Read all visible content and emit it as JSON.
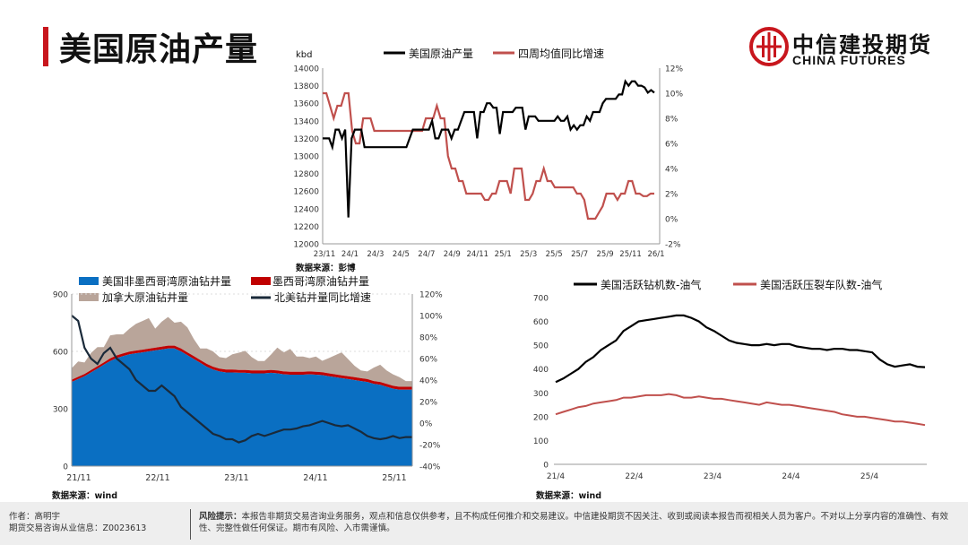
{
  "page": {
    "title": "美国原油产量",
    "logo_cn": "中信建投期货",
    "logo_en": "CHINA FUTURES",
    "brand_color": "#c8161d"
  },
  "footer": {
    "author": "作者：高明宇",
    "license": "期货交易咨询从业信息：Z0023613",
    "risk_label": "风险提示：",
    "risk_text": "本报告非期货交易咨询业务服务，观点和信息仅供参考，且不构成任何推介和交易建议。中信建投期货不因关注、收到或阅读本报告而视相关人员为客户。不对以上分享内容的准确性、有效性、完整性做任何保证。期市有风险、入市需谨慎。"
  },
  "chart_data": [
    {
      "type": "line",
      "title": "美国原油产量",
      "ylabel": "kbd",
      "source": "数据来源：彭博",
      "ylim": [
        12000,
        14000
      ],
      "y2lim": [
        -2,
        12
      ],
      "yticks": [
        "14000",
        "13800",
        "13600",
        "13400",
        "13200",
        "13000",
        "12800",
        "12600",
        "12400",
        "12200",
        "12000"
      ],
      "y2ticks": [
        "12%",
        "10%",
        "8%",
        "6%",
        "4%",
        "2%",
        "0%",
        "-2%"
      ],
      "xticks": [
        "23/11",
        "24/1",
        "24/3",
        "24/5",
        "24/7",
        "24/9",
        "24/11",
        "25/1",
        "25/3",
        "25/5",
        "25/7",
        "25/9",
        "25/11",
        "26/1"
      ],
      "series": [
        {
          "name": "美国原油产量",
          "axis": "left",
          "color": "#000000",
          "values": [
            13200,
            13200,
            13200,
            13100,
            13300,
            13300,
            13200,
            13300,
            12300,
            13200,
            13300,
            13300,
            13300,
            13100,
            13100,
            13100,
            13100,
            13100,
            13100,
            13100,
            13100,
            13100,
            13100,
            13100,
            13100,
            13100,
            13100,
            13200,
            13300,
            13300,
            13300,
            13300,
            13300,
            13300,
            13400,
            13200,
            13200,
            13300,
            13300,
            13300,
            13200,
            13300,
            13300,
            13400,
            13500,
            13500,
            13500,
            13500,
            13200,
            13500,
            13500,
            13600,
            13600,
            13550,
            13550,
            13250,
            13500,
            13500,
            13500,
            13500,
            13550,
            13550,
            13550,
            13300,
            13450,
            13450,
            13450,
            13400,
            13400,
            13400,
            13400,
            13400,
            13400,
            13450,
            13400,
            13400,
            13450,
            13300,
            13350,
            13300,
            13350,
            13350,
            13450,
            13400,
            13500,
            13500,
            13500,
            13600,
            13650,
            13650,
            13650,
            13650,
            13700,
            13700,
            13850,
            13800,
            13850,
            13850,
            13800,
            13800,
            13780,
            13720,
            13750,
            13720
          ]
        },
        {
          "name": "四周均值同比增速",
          "axis": "right",
          "color": "#c0504d",
          "values": [
            10,
            10,
            9,
            8,
            9,
            9,
            10,
            10,
            7,
            6,
            6,
            8,
            8,
            8,
            7,
            7,
            7,
            7,
            7,
            7,
            7,
            7,
            7,
            7,
            7,
            7,
            7,
            7,
            8,
            8,
            8,
            9,
            8,
            8,
            5,
            4,
            4,
            3,
            3,
            2,
            2,
            2,
            2,
            2,
            1.5,
            1.5,
            2,
            2,
            3,
            3,
            3,
            2,
            4,
            4,
            4,
            1.5,
            1.5,
            2,
            3,
            3,
            4,
            3,
            3,
            2.5,
            2.5,
            2.5,
            2.5,
            2.5,
            2.5,
            2,
            2,
            1.5,
            0,
            0,
            0,
            0.5,
            1,
            2,
            2,
            2,
            1.5,
            2,
            2,
            3,
            3,
            2,
            2,
            1.8,
            1.8,
            2,
            2
          ]
        }
      ]
    },
    {
      "type": "area",
      "source": "数据来源：wind",
      "ylim": [
        0,
        900
      ],
      "y2lim": [
        -40,
        120
      ],
      "yticks": [
        "900",
        "600",
        "300",
        "0"
      ],
      "y2ticks": [
        "120%",
        "100%",
        "80%",
        "60%",
        "40%",
        "20%",
        "0%",
        "-20%",
        "-40%"
      ],
      "xticks": [
        "21/11",
        "22/11",
        "23/11",
        "24/11",
        "25/11"
      ],
      "series": [
        {
          "name": "美国非墨西哥湾原油钻井量",
          "color": "#0a6fc2",
          "stack": true,
          "values": [
            440,
            455,
            470,
            490,
            510,
            530,
            550,
            565,
            575,
            585,
            590,
            595,
            600,
            605,
            610,
            615,
            615,
            600,
            580,
            560,
            540,
            520,
            505,
            495,
            490,
            490,
            488,
            488,
            485,
            485,
            485,
            488,
            485,
            480,
            478,
            478,
            478,
            480,
            478,
            476,
            470,
            465,
            460,
            455,
            450,
            445,
            440,
            430,
            425,
            415,
            405,
            400,
            400,
            400
          ]
        },
        {
          "name": "墨西哥湾原油钻井量",
          "color": "#c00000",
          "stack": true,
          "values": [
            12,
            12,
            12,
            12,
            12,
            12,
            14,
            14,
            14,
            14,
            14,
            14,
            14,
            14,
            15,
            15,
            15,
            15,
            15,
            15,
            15,
            15,
            15,
            15,
            15,
            15,
            15,
            15,
            15,
            15,
            15,
            15,
            15,
            15,
            15,
            15,
            15,
            15,
            15,
            15,
            15,
            15,
            15,
            15,
            15,
            15,
            15,
            15,
            15,
            15,
            15,
            15,
            15,
            15
          ]
        },
        {
          "name": "加拿大原油钻井量",
          "color": "#b9a59a",
          "stack": true,
          "values": [
            60,
            80,
            60,
            90,
            100,
            80,
            120,
            110,
            100,
            120,
            140,
            150,
            160,
            100,
            130,
            150,
            120,
            140,
            130,
            90,
            60,
            80,
            80,
            60,
            60,
            80,
            90,
            100,
            70,
            50,
            50,
            80,
            120,
            100,
            120,
            80,
            80,
            70,
            80,
            60,
            80,
            100,
            120,
            90,
            60,
            40,
            40,
            70,
            90,
            70,
            60,
            50,
            30,
            30
          ]
        },
        {
          "name": "北美钻井量同比增速",
          "axis": "right",
          "color": "#1a2a3a",
          "values": [
            100,
            95,
            70,
            60,
            55,
            65,
            70,
            60,
            55,
            50,
            40,
            35,
            30,
            30,
            35,
            30,
            25,
            15,
            10,
            5,
            0,
            -5,
            -10,
            -12,
            -15,
            -15,
            -18,
            -16,
            -12,
            -10,
            -12,
            -10,
            -8,
            -6,
            -6,
            -5,
            -3,
            -2,
            0,
            2,
            0,
            -2,
            -3,
            -2,
            -5,
            -8,
            -12,
            -14,
            -15,
            -14,
            -12,
            -14,
            -13,
            -13
          ]
        }
      ]
    },
    {
      "type": "line",
      "source": "数据来源：wind",
      "ylim": [
        0,
        700
      ],
      "yticks": [
        "700",
        "600",
        "500",
        "400",
        "300",
        "200",
        "100",
        "0"
      ],
      "xticks": [
        "21/4",
        "22/4",
        "23/4",
        "24/4",
        "25/4"
      ],
      "series": [
        {
          "name": "美国活跃钻机数-油气",
          "color": "#000000",
          "values": [
            345,
            360,
            380,
            400,
            430,
            450,
            480,
            500,
            520,
            560,
            580,
            600,
            605,
            610,
            615,
            620,
            625,
            625,
            615,
            600,
            575,
            560,
            540,
            520,
            510,
            505,
            500,
            500,
            505,
            500,
            505,
            505,
            495,
            490,
            485,
            485,
            480,
            485,
            485,
            480,
            480,
            475,
            470,
            440,
            420,
            410,
            415,
            420,
            410,
            408
          ]
        },
        {
          "name": "美国活跃压裂车队数-油气",
          "color": "#c0504d",
          "values": [
            210,
            220,
            230,
            240,
            245,
            255,
            260,
            265,
            270,
            280,
            280,
            285,
            290,
            290,
            290,
            295,
            290,
            280,
            280,
            285,
            280,
            275,
            275,
            270,
            265,
            260,
            255,
            250,
            260,
            255,
            250,
            250,
            245,
            240,
            235,
            230,
            225,
            220,
            210,
            205,
            200,
            200,
            195,
            190,
            185,
            180,
            180,
            175,
            170,
            165
          ]
        }
      ]
    }
  ]
}
